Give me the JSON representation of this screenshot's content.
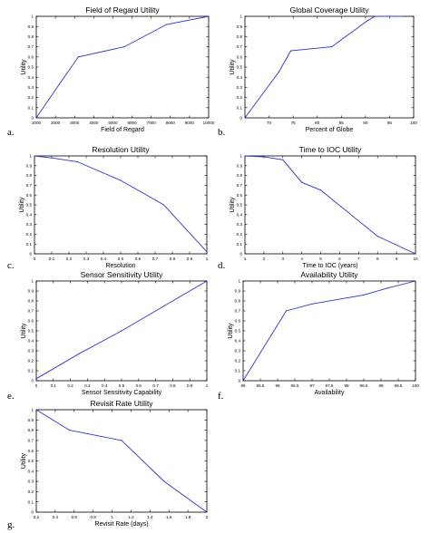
{
  "colors": {
    "line": "#3333cc",
    "axis": "#000000",
    "background": "#ffffff"
  },
  "chart_data": [
    {
      "panel_label": "a.",
      "type": "line",
      "title": "Field of Regard Utility",
      "xlabel": "Field of Regard",
      "ylabel": "Utility",
      "xlim": [
        1000,
        10000
      ],
      "ylim": [
        0,
        1
      ],
      "xticks": [
        "1000",
        "2000",
        "3000",
        "4000",
        "5000",
        "6000",
        "7000",
        "8000",
        "9000",
        "10000"
      ],
      "yticks": [
        "0",
        "0.1",
        "0.2",
        "0.3",
        "0.4",
        "0.5",
        "0.6",
        "0.7",
        "0.8",
        "0.9",
        "1"
      ],
      "x": [
        1000,
        2200,
        3200,
        5600,
        7800,
        10000
      ],
      "y": [
        0,
        0.33,
        0.6,
        0.7,
        0.92,
        1.0
      ]
    },
    {
      "panel_label": "b.",
      "type": "line",
      "title": "Global Coverage Utility",
      "xlabel": "Percent of Globe",
      "ylabel": "Utility",
      "xlim": [
        65,
        100
      ],
      "ylim": [
        0,
        1
      ],
      "xticks": [
        "70",
        "75",
        "80",
        "85",
        "90",
        "95",
        "100"
      ],
      "yticks": [
        "0",
        "0.1",
        "0.2",
        "0.3",
        "0.4",
        "0.5",
        "0.6",
        "0.7",
        "0.8",
        "0.9",
        "1"
      ],
      "x": [
        65,
        72,
        74.5,
        83,
        90.5,
        92,
        98
      ],
      "y": [
        0,
        0.45,
        0.66,
        0.7,
        0.96,
        1.0,
        1.0
      ]
    },
    {
      "panel_label": "c.",
      "type": "line",
      "title": "Resolution Utility",
      "xlabel": "Resolution",
      "ylabel": "Utility",
      "xlim": [
        0,
        1
      ],
      "ylim": [
        0,
        1
      ],
      "xticks": [
        "0",
        "0.1",
        "0.2",
        "0.3",
        "0.4",
        "0.5",
        "0.6",
        "0.7",
        "0.8",
        "0.9",
        "1"
      ],
      "yticks": [
        "0",
        "0.1",
        "0.2",
        "0.3",
        "0.4",
        "0.5",
        "0.6",
        "0.7",
        "0.8",
        "0.9",
        "1"
      ],
      "x": [
        0,
        0.1,
        0.25,
        0.5,
        0.75,
        1.0
      ],
      "y": [
        1.0,
        0.98,
        0.94,
        0.75,
        0.5,
        0.02
      ]
    },
    {
      "panel_label": "d.",
      "type": "line",
      "title": "Time to IOC Utility",
      "xlabel": "Time to IOC (years)",
      "ylabel": "Utility",
      "xlim": [
        1,
        10
      ],
      "ylim": [
        0,
        1
      ],
      "xticks": [
        "1",
        "2",
        "3",
        "4",
        "5",
        "6",
        "7",
        "8",
        "9",
        "10"
      ],
      "yticks": [
        "0",
        "0.1",
        "0.2",
        "0.3",
        "0.4",
        "0.5",
        "0.6",
        "0.7",
        "0.8",
        "0.9",
        "1"
      ],
      "x": [
        1,
        2,
        3,
        4,
        5,
        8,
        10
      ],
      "y": [
        1.0,
        0.99,
        0.96,
        0.73,
        0.65,
        0.18,
        0
      ]
    },
    {
      "panel_label": "e.",
      "type": "line",
      "title": "Sensor Sensitivity Utility",
      "xlabel": "Sensor Sensitivity Capability",
      "ylabel": "Utility",
      "xlim": [
        0,
        1
      ],
      "ylim": [
        0,
        1
      ],
      "xticks": [
        "0",
        "0.1",
        "0.2",
        "0.3",
        "0.4",
        "0.5",
        "0.6",
        "0.7",
        "0.8",
        "0.9",
        "1"
      ],
      "yticks": [
        "0",
        "0.1",
        "0.2",
        "0.3",
        "0.4",
        "0.5",
        "0.6",
        "0.7",
        "0.8",
        "0.9",
        "1"
      ],
      "x": [
        0,
        0.25,
        0.5,
        0.75,
        1.0
      ],
      "y": [
        0.02,
        0.27,
        0.5,
        0.75,
        1.0
      ]
    },
    {
      "panel_label": "f.",
      "type": "line",
      "title": "Availability Utility",
      "xlabel": "Availability",
      "ylabel": "Utility",
      "xlim": [
        95,
        100
      ],
      "ylim": [
        0,
        1
      ],
      "xticks": [
        "95",
        "95.5",
        "96",
        "96.5",
        "97",
        "97.5",
        "98",
        "98.5",
        "99",
        "99.5",
        "100"
      ],
      "yticks": [
        "0",
        "0.1",
        "0.2",
        "0.3",
        "0.4",
        "0.5",
        "0.6",
        "0.7",
        "0.8",
        "0.9",
        "1"
      ],
      "x": [
        95,
        96.25,
        97,
        98.5,
        99.2,
        100
      ],
      "y": [
        0,
        0.7,
        0.77,
        0.86,
        0.93,
        1.0
      ]
    },
    {
      "panel_label": "g.",
      "type": "line",
      "title": "Revisit Rate Utility",
      "xlabel": "Revisit Rate (days)",
      "ylabel": "Utility",
      "xlim": [
        0.2,
        2
      ],
      "ylim": [
        0,
        1
      ],
      "xticks": [
        "0.2",
        "0.4",
        "0.6",
        "0.8",
        "1",
        "1.2",
        "1.4",
        "1.6",
        "1.8",
        "2"
      ],
      "yticks": [
        "0",
        "0.1",
        "0.2",
        "0.3",
        "0.4",
        "0.5",
        "0.6",
        "0.7",
        "0.8",
        "0.9",
        "1"
      ],
      "x": [
        0.2,
        0.55,
        1.1,
        1.55,
        2.0
      ],
      "y": [
        1.0,
        0.8,
        0.7,
        0.3,
        0
      ]
    }
  ]
}
